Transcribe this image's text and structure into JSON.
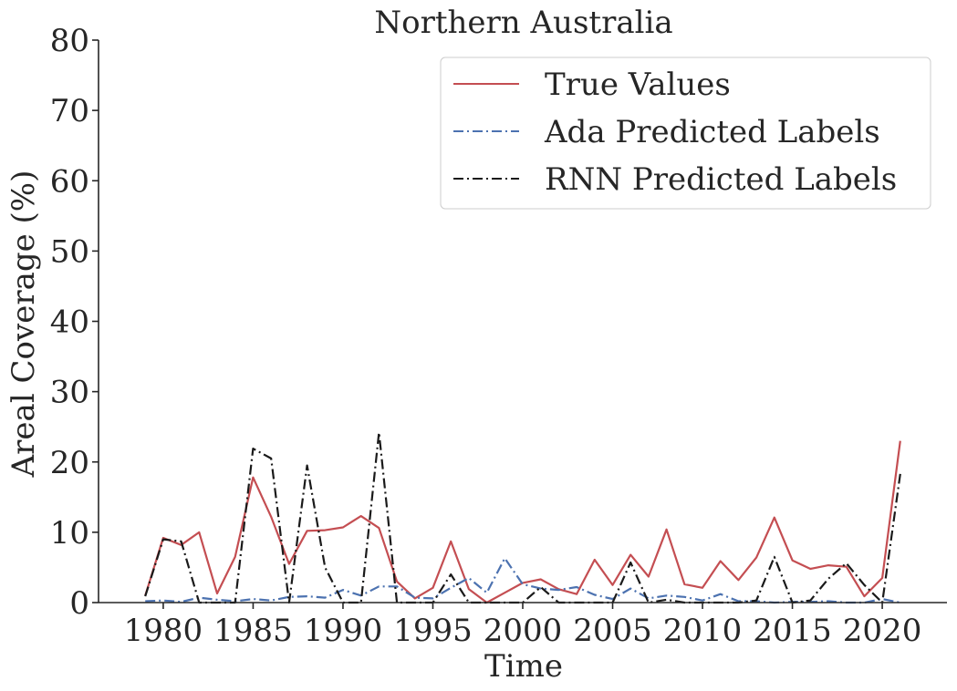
{
  "chart_data": {
    "type": "line",
    "title": "Northern Australia",
    "xlabel": "Time",
    "ylabel": "Areal Coverage (%)",
    "xlim": [
      1976.4,
      2023.6
    ],
    "ylim": [
      0,
      80
    ],
    "xticks": [
      1980,
      1985,
      1990,
      1995,
      2000,
      2005,
      2010,
      2015,
      2020
    ],
    "yticks": [
      0,
      10,
      20,
      30,
      40,
      50,
      60,
      70,
      80
    ],
    "grid": false,
    "legend_position": "top-right",
    "x": [
      1979,
      1980,
      1981,
      1982,
      1983,
      1984,
      1985,
      1986,
      1987,
      1988,
      1989,
      1990,
      1991,
      1992,
      1993,
      1994,
      1995,
      1996,
      1997,
      1998,
      1999,
      2000,
      2001,
      2002,
      2003,
      2004,
      2005,
      2006,
      2007,
      2008,
      2009,
      2010,
      2011,
      2012,
      2013,
      2014,
      2015,
      2016,
      2017,
      2018,
      2019,
      2020,
      2021
    ],
    "series": [
      {
        "name": "True Values",
        "color": "#c44e52",
        "style": "solid",
        "values": [
          1.0,
          9.2,
          8.2,
          10.0,
          1.3,
          6.5,
          17.8,
          12.2,
          5.5,
          10.2,
          10.3,
          10.7,
          12.3,
          10.6,
          3.0,
          0.6,
          2.1,
          8.7,
          1.9,
          0.0,
          1.4,
          2.8,
          3.3,
          1.9,
          1.2,
          6.1,
          2.5,
          6.8,
          3.7,
          10.4,
          2.6,
          2.1,
          5.9,
          3.2,
          6.4,
          12.1,
          6.0,
          4.8,
          5.3,
          5.1,
          0.9,
          3.5,
          23.0
        ]
      },
      {
        "name": "Ada Predicted Labels",
        "color": "#4c72b0",
        "style": "dashdot",
        "values": [
          0.2,
          0.3,
          0.1,
          0.7,
          0.4,
          0.2,
          0.5,
          0.3,
          0.8,
          0.9,
          0.7,
          1.8,
          1.0,
          2.3,
          2.3,
          0.7,
          0.6,
          2.1,
          3.5,
          1.4,
          6.3,
          2.6,
          2.0,
          1.8,
          2.2,
          1.1,
          0.5,
          2.0,
          0.6,
          1.0,
          0.8,
          0.3,
          1.2,
          0.2,
          0.2,
          0.0,
          0.1,
          0.1,
          0.2,
          0.0,
          0.0,
          0.5,
          0.0
        ]
      },
      {
        "name": "RNN Predicted Labels",
        "color": "#1a1a1a",
        "style": "dashdot",
        "values": [
          0.9,
          9.0,
          8.7,
          0.0,
          0.0,
          0.0,
          21.9,
          20.5,
          0.0,
          19.5,
          5.0,
          0.0,
          0.0,
          24.2,
          0.0,
          0.0,
          0.0,
          4.0,
          0.0,
          0.0,
          0.0,
          0.0,
          2.2,
          0.0,
          0.0,
          0.0,
          0.0,
          5.7,
          0.0,
          0.4,
          0.0,
          0.0,
          0.0,
          0.0,
          0.3,
          6.5,
          0.0,
          0.3,
          3.4,
          5.6,
          2.5,
          0.0,
          18.3
        ]
      }
    ]
  }
}
